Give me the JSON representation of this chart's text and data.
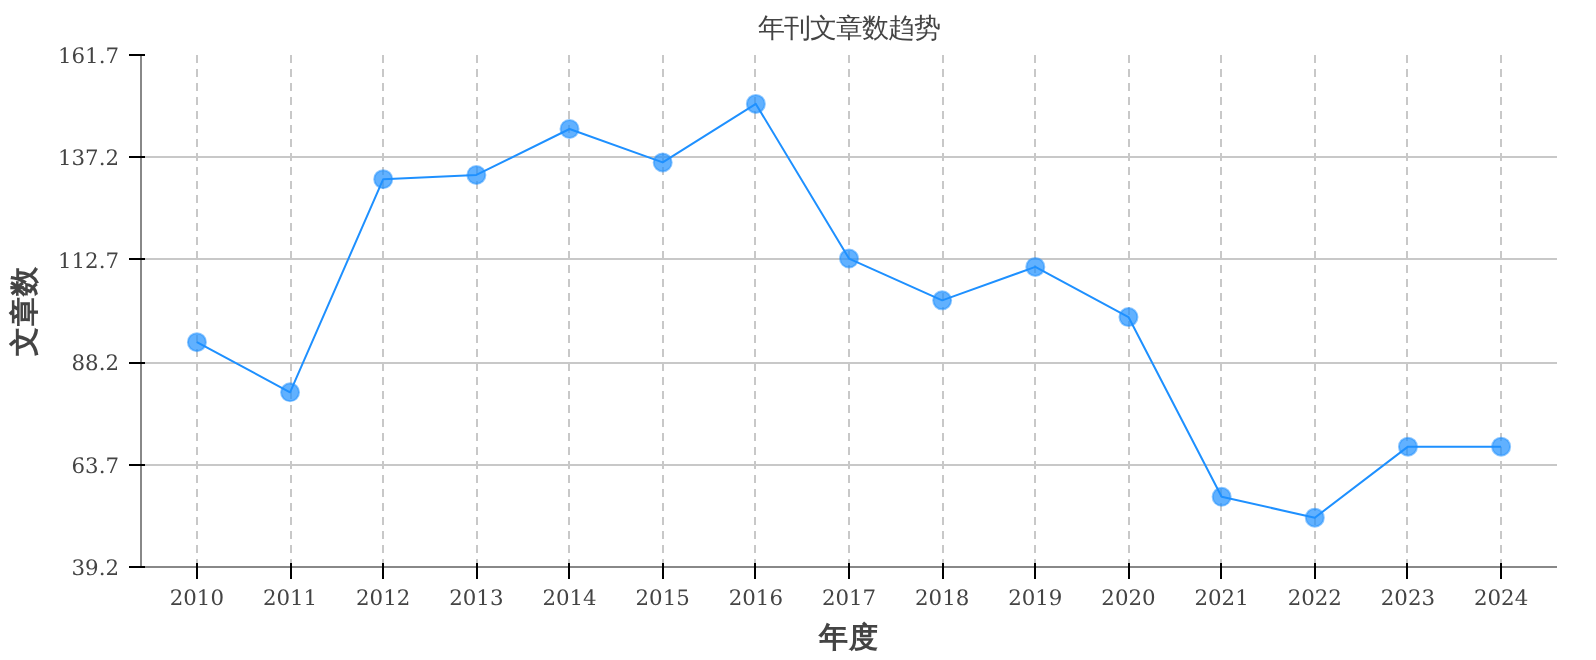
{
  "chart_data": {
    "type": "line",
    "title": "年刊文章数趋势",
    "xlabel": "年度",
    "ylabel": "文章数",
    "categories": [
      "2010",
      "2011",
      "2012",
      "2013",
      "2014",
      "2015",
      "2016",
      "2017",
      "2018",
      "2019",
      "2020",
      "2021",
      "2022",
      "2023",
      "2024"
    ],
    "series": [
      {
        "color": "#1e90ff",
        "values": [
          93,
          81,
          132,
          133,
          144,
          136,
          150,
          113,
          103,
          111,
          99,
          56,
          51,
          68,
          68
        ]
      }
    ],
    "ylim": [
      39.2,
      161.7
    ],
    "yticks": [
      39.2,
      63.7,
      88.2,
      112.7,
      137.2,
      161.7
    ],
    "grid": true,
    "marker": "circle",
    "line_style": "solid"
  }
}
